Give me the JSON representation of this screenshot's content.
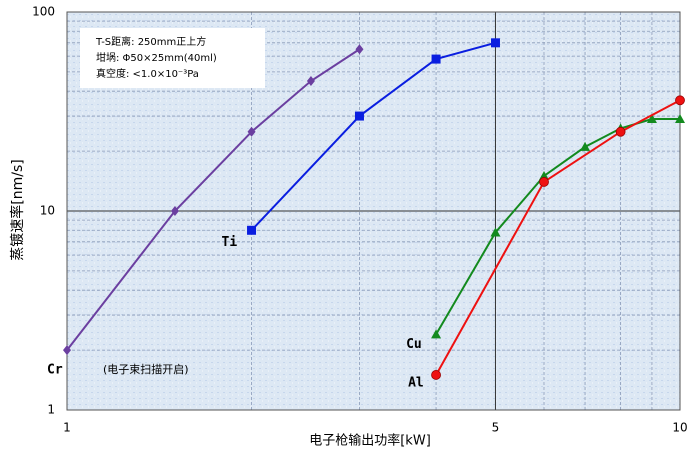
{
  "chart_data": {
    "type": "line",
    "x_label": "电子枪输出功率[kW]",
    "y_label": "蒸镀速率[nm/s]",
    "log_x": true,
    "log_y": true,
    "grid": true,
    "xlim": [
      1,
      10
    ],
    "ylim": [
      1,
      100
    ],
    "xticks": [
      1,
      5,
      10
    ],
    "yticks": [
      1,
      10,
      100
    ],
    "xminor": [
      2,
      3,
      4,
      6,
      7,
      8,
      9
    ],
    "yminor": [
      2,
      3,
      4,
      5,
      6,
      7,
      8,
      9,
      20,
      30,
      40,
      50,
      60,
      70,
      80,
      90
    ],
    "annotations": [
      "T-S距离:  250mm正上方",
      "坩埚:  Φ50×25mm(40ml)",
      "真空度:  <1.0×10⁻³Pa",
      "(电子束扫描开启)"
    ],
    "series": [
      {
        "name": "Cr",
        "color": "#6b3fa0",
        "marker": "diamond",
        "x": [
          1,
          1.5,
          2,
          2.5,
          3
        ],
        "values": [
          2,
          10,
          25,
          45,
          65
        ]
      },
      {
        "name": "Ti",
        "color": "#0a1ee0",
        "marker": "square",
        "x": [
          2,
          3,
          4,
          5
        ],
        "values": [
          8,
          30,
          58,
          70
        ]
      },
      {
        "name": "Cu",
        "color": "#138a1e",
        "marker": "triangle",
        "x": [
          4,
          5,
          6,
          7,
          8,
          9,
          10
        ],
        "values": [
          2.4,
          7.8,
          15,
          21,
          26,
          29,
          29
        ]
      },
      {
        "name": "Al",
        "color": "#ee1111",
        "marker": "circle",
        "x": [
          4,
          6,
          8,
          10
        ],
        "values": [
          1.5,
          14,
          25,
          36
        ]
      }
    ]
  }
}
